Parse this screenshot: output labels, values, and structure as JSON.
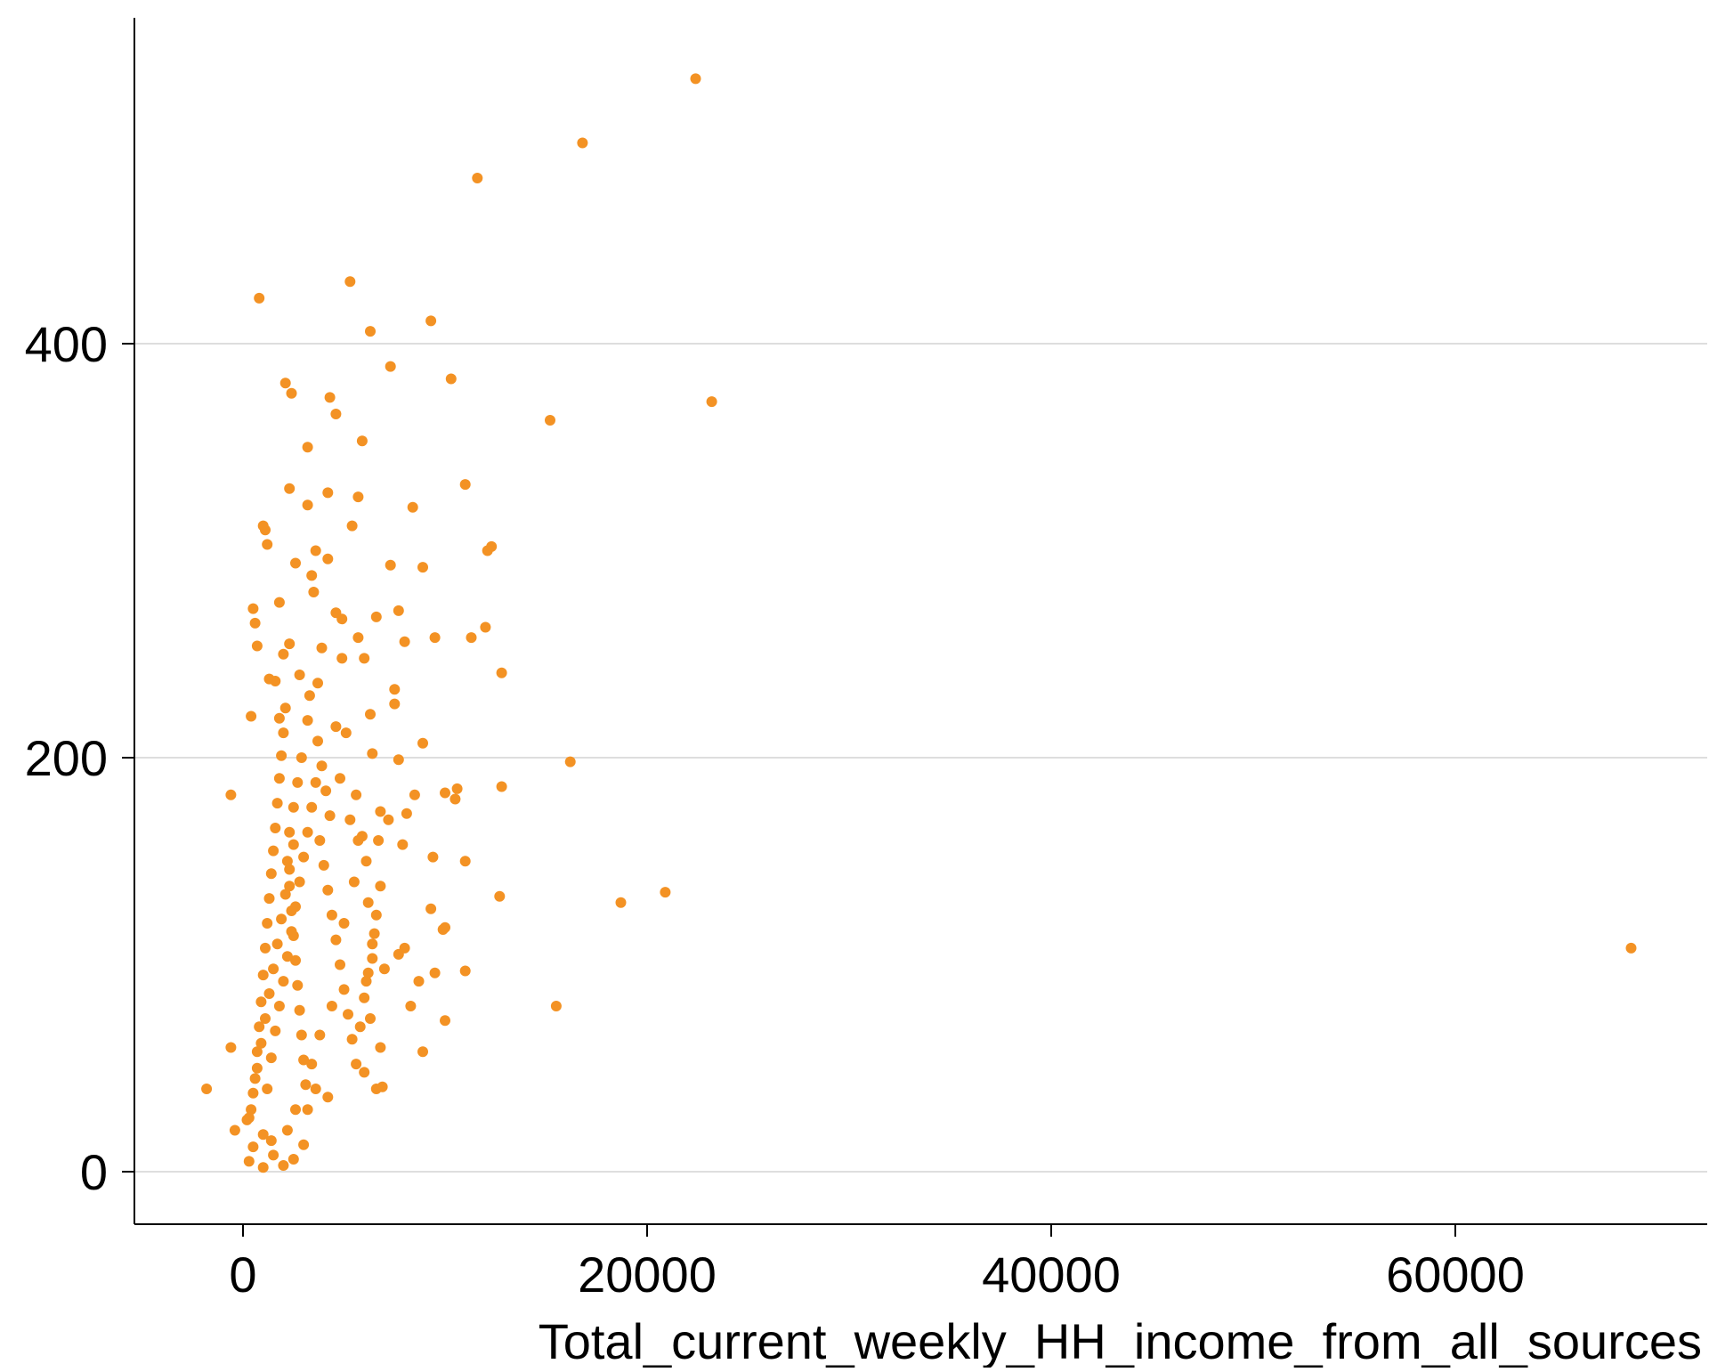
{
  "chart_data": {
    "type": "scatter",
    "title": "",
    "xlabel": "Total_current_weekly_HH_income_from_all_sources",
    "ylabel": "",
    "xlim": [
      -5500,
      72000
    ],
    "ylim": [
      -25,
      555
    ],
    "xticks": [
      0,
      20000,
      40000,
      60000
    ],
    "xtick_labels": [
      "0",
      "20000",
      "40000",
      "60000"
    ],
    "yticks": [
      0,
      200,
      400
    ],
    "ytick_labels": [
      "0",
      "200",
      "400"
    ],
    "grid": {
      "y": true,
      "x": false
    },
    "marker_color": "#f39224",
    "gridline_color": "#d4d4d4",
    "series": [
      {
        "name": "",
        "points": [
          [
            22400,
            528
          ],
          [
            16800,
            497
          ],
          [
            11600,
            480
          ],
          [
            5300,
            430
          ],
          [
            800,
            422
          ],
          [
            9300,
            411
          ],
          [
            6300,
            406
          ],
          [
            7300,
            389
          ],
          [
            10300,
            383
          ],
          [
            2100,
            381
          ],
          [
            2400,
            376
          ],
          [
            4300,
            374
          ],
          [
            4600,
            366
          ],
          [
            15200,
            363
          ],
          [
            23200,
            372
          ],
          [
            5900,
            353
          ],
          [
            3200,
            350
          ],
          [
            11000,
            332
          ],
          [
            2300,
            330
          ],
          [
            4200,
            328
          ],
          [
            5700,
            326
          ],
          [
            3200,
            322
          ],
          [
            8400,
            321
          ],
          [
            1000,
            312
          ],
          [
            1100,
            310
          ],
          [
            5400,
            312
          ],
          [
            1200,
            303
          ],
          [
            12300,
            302
          ],
          [
            12100,
            300
          ],
          [
            3600,
            300
          ],
          [
            4200,
            296
          ],
          [
            2600,
            294
          ],
          [
            7300,
            293
          ],
          [
            8900,
            292
          ],
          [
            3400,
            288
          ],
          [
            3500,
            280
          ],
          [
            4600,
            270
          ],
          [
            1800,
            275
          ],
          [
            500,
            272
          ],
          [
            4900,
            267
          ],
          [
            6600,
            268
          ],
          [
            7700,
            271
          ],
          [
            600,
            265
          ],
          [
            12000,
            263
          ],
          [
            11300,
            258
          ],
          [
            8000,
            256
          ],
          [
            5700,
            258
          ],
          [
            9500,
            258
          ],
          [
            2300,
            255
          ],
          [
            700,
            254
          ],
          [
            3900,
            253
          ],
          [
            4900,
            248
          ],
          [
            6000,
            248
          ],
          [
            12800,
            241
          ],
          [
            7500,
            233
          ],
          [
            1300,
            238
          ],
          [
            1600,
            237
          ],
          [
            3700,
            236
          ],
          [
            7500,
            226
          ],
          [
            6300,
            221
          ],
          [
            400,
            220
          ],
          [
            1800,
            219
          ],
          [
            3200,
            218
          ],
          [
            4600,
            215
          ],
          [
            5100,
            212
          ],
          [
            8900,
            207
          ],
          [
            6400,
            202
          ],
          [
            16200,
            198
          ],
          [
            7700,
            199
          ],
          [
            12800,
            186
          ],
          [
            10600,
            185
          ],
          [
            10000,
            183
          ],
          [
            10500,
            180
          ],
          [
            8500,
            182
          ],
          [
            -600,
            182
          ],
          [
            5600,
            182
          ],
          [
            6800,
            174
          ],
          [
            8100,
            173
          ],
          [
            7200,
            170
          ],
          [
            5900,
            162
          ],
          [
            6700,
            160
          ],
          [
            7900,
            158
          ],
          [
            9400,
            152
          ],
          [
            11000,
            150
          ],
          [
            20900,
            135
          ],
          [
            18700,
            130
          ],
          [
            12700,
            133
          ],
          [
            9300,
            127
          ],
          [
            9900,
            117
          ],
          [
            10000,
            118
          ],
          [
            8000,
            108
          ],
          [
            7700,
            105
          ],
          [
            6400,
            103
          ],
          [
            7000,
            98
          ],
          [
            11000,
            97
          ],
          [
            9500,
            96
          ],
          [
            8700,
            92
          ],
          [
            6100,
            92
          ],
          [
            15500,
            80
          ],
          [
            10000,
            73
          ],
          [
            8300,
            80
          ],
          [
            6300,
            74
          ],
          [
            6800,
            60
          ],
          [
            8900,
            58
          ],
          [
            6600,
            40
          ],
          [
            6900,
            41
          ],
          [
            6000,
            48
          ],
          [
            -1800,
            40
          ],
          [
            -600,
            60
          ],
          [
            4200,
            36
          ],
          [
            3600,
            40
          ],
          [
            1000,
            2
          ],
          [
            2000,
            3
          ],
          [
            3000,
            13
          ],
          [
            68700,
            108
          ],
          [
            300,
            5
          ],
          [
            500,
            12
          ],
          [
            200,
            25
          ],
          [
            1500,
            8
          ],
          [
            2500,
            6
          ],
          [
            -400,
            20
          ],
          [
            400,
            30
          ],
          [
            600,
            45
          ],
          [
            700,
            58
          ],
          [
            800,
            70
          ],
          [
            900,
            82
          ],
          [
            1000,
            95
          ],
          [
            1100,
            108
          ],
          [
            1200,
            120
          ],
          [
            1300,
            132
          ],
          [
            1400,
            144
          ],
          [
            1500,
            155
          ],
          [
            1600,
            166
          ],
          [
            1700,
            178
          ],
          [
            1800,
            190
          ],
          [
            1900,
            201
          ],
          [
            2000,
            212
          ],
          [
            2100,
            224
          ],
          [
            2200,
            150
          ],
          [
            2300,
            138
          ],
          [
            2400,
            126
          ],
          [
            2500,
            114
          ],
          [
            2600,
            102
          ],
          [
            2700,
            90
          ],
          [
            2800,
            78
          ],
          [
            2900,
            66
          ],
          [
            3000,
            54
          ],
          [
            3100,
            42
          ],
          [
            3200,
            30
          ],
          [
            1200,
            40
          ],
          [
            1400,
            55
          ],
          [
            1600,
            68
          ],
          [
            1800,
            80
          ],
          [
            2000,
            92
          ],
          [
            2200,
            104
          ],
          [
            2400,
            116
          ],
          [
            2600,
            128
          ],
          [
            2800,
            140
          ],
          [
            3000,
            152
          ],
          [
            3200,
            164
          ],
          [
            3400,
            176
          ],
          [
            3600,
            188
          ],
          [
            3800,
            160
          ],
          [
            4000,
            148
          ],
          [
            4200,
            136
          ],
          [
            4400,
            124
          ],
          [
            4600,
            112
          ],
          [
            4800,
            100
          ],
          [
            5000,
            88
          ],
          [
            5200,
            76
          ],
          [
            5400,
            64
          ],
          [
            5600,
            52
          ],
          [
            5800,
            70
          ],
          [
            6000,
            84
          ],
          [
            6200,
            96
          ],
          [
            6400,
            110
          ],
          [
            6600,
            124
          ],
          [
            6800,
            138
          ],
          [
            3700,
            208
          ],
          [
            3900,
            196
          ],
          [
            4100,
            184
          ],
          [
            4300,
            172
          ],
          [
            2900,
            200
          ],
          [
            2700,
            188
          ],
          [
            2500,
            176
          ],
          [
            2300,
            164
          ],
          [
            1700,
            110
          ],
          [
            1500,
            98
          ],
          [
            1300,
            86
          ],
          [
            1100,
            74
          ],
          [
            900,
            62
          ],
          [
            700,
            50
          ],
          [
            500,
            38
          ],
          [
            300,
            26
          ],
          [
            1900,
            122
          ],
          [
            2100,
            134
          ],
          [
            2300,
            146
          ],
          [
            2500,
            158
          ],
          [
            1000,
            18
          ],
          [
            1400,
            15
          ],
          [
            2200,
            20
          ],
          [
            2600,
            30
          ],
          [
            3400,
            52
          ],
          [
            3800,
            66
          ],
          [
            4400,
            80
          ],
          [
            5000,
            120
          ],
          [
            5500,
            140
          ],
          [
            6100,
            150
          ],
          [
            3300,
            230
          ],
          [
            2800,
            240
          ],
          [
            2000,
            250
          ],
          [
            4800,
            190
          ],
          [
            5300,
            170
          ],
          [
            5700,
            160
          ],
          [
            6200,
            130
          ],
          [
            6500,
            115
          ]
        ]
      }
    ]
  }
}
